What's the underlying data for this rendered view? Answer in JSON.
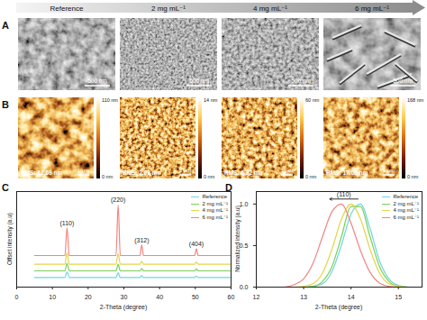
{
  "figure": {
    "A": {
      "panel_label": "A",
      "conditions": [
        "Reference",
        "2 mg mL⁻¹",
        "4 mg mL⁻¹",
        "6 mg mL⁻¹"
      ],
      "images": [
        {
          "scale_bar": "500 nm"
        },
        {
          "scale_bar": "500 nm"
        },
        {
          "scale_bar": "500 nm"
        },
        {
          "scale_bar": "500 nm"
        }
      ]
    },
    "B": {
      "panel_label": "B",
      "images": [
        {
          "rms": "RMS: 12.69 nm",
          "scale_bar": "1 μm",
          "colorbar_max": "110 nm",
          "colorbar_min": "0 nm"
        },
        {
          "rms": "RMS: 2.03 nm",
          "scale_bar": "1 μm",
          "colorbar_max": "14 nm",
          "colorbar_min": "0 nm"
        },
        {
          "rms": "RMS: 6.32 nm",
          "scale_bar": "1 μm",
          "colorbar_max": "60 nm",
          "colorbar_min": "0 nm"
        },
        {
          "rms": "RMS: 17.09 nm",
          "scale_bar": "1 μm",
          "colorbar_max": "168 nm",
          "colorbar_min": "0 nm"
        }
      ]
    }
  },
  "chart_data": [
    {
      "panel_label": "C",
      "type": "line",
      "x_label": "2-Theta (degree)",
      "y_label": "Offset intensity (a.u)",
      "x": [
        5,
        13.5,
        14.1,
        14.7,
        27.8,
        28.4,
        29.0,
        34.5,
        35.0,
        35.5,
        49.8,
        50.3,
        50.8,
        60
      ],
      "series": [
        {
          "name": "Reference",
          "color": "#6fd6df",
          "values": [
            1.0,
            1.0,
            1.6,
            1.0,
            1.0,
            1.5,
            1.0,
            1.0,
            1.2,
            1.0,
            1.0,
            1.15,
            1.0,
            1.0
          ]
        },
        {
          "name": "2 mg mL⁻¹",
          "color": "#7ccf5a",
          "values": [
            1.7,
            1.7,
            2.5,
            1.7,
            1.7,
            2.4,
            1.7,
            1.7,
            1.95,
            1.7,
            1.7,
            1.9,
            1.7,
            1.7
          ]
        },
        {
          "name": "4 mg mL⁻¹",
          "color": "#e3d54a",
          "values": [
            2.4,
            2.4,
            3.6,
            2.4,
            2.4,
            3.5,
            2.4,
            2.4,
            2.7,
            2.4,
            2.4,
            2.6,
            2.4,
            2.4
          ]
        },
        {
          "name": "6 mg mL⁻¹",
          "color": "#f2857f",
          "values": [
            3.3,
            3.3,
            6.2,
            3.3,
            3.3,
            8.6,
            3.3,
            3.3,
            4.4,
            3.3,
            3.3,
            4.0,
            3.3,
            3.3
          ]
        }
      ],
      "xlim": [
        0,
        60
      ],
      "xticks": [
        0,
        10,
        20,
        30,
        40,
        50,
        60
      ],
      "ylim": [
        0,
        10
      ],
      "tick_labels": "x",
      "legend": "top-right",
      "annotations": [
        {
          "text": "(110)",
          "x": 14.1,
          "y": 6.4
        },
        {
          "text": "(220)",
          "x": 28.4,
          "y": 8.8
        },
        {
          "text": "(312)",
          "x": 35.0,
          "y": 4.6
        },
        {
          "text": "(404)",
          "x": 50.3,
          "y": 4.2
        }
      ]
    },
    {
      "panel_label": "D",
      "type": "line",
      "x_label": "2-Theta (degree)",
      "y_label": "Normalized intensity (a.u)",
      "x": [
        12.6,
        12.8,
        13.0,
        13.2,
        13.4,
        13.6,
        13.8,
        14.0,
        14.2,
        14.4,
        14.6,
        14.8,
        15.0,
        15.2
      ],
      "series": [
        {
          "name": "Reference",
          "color": "#6fd6df",
          "values": [
            0,
            0,
            0,
            0.01,
            0.04,
            0.19,
            0.51,
            0.88,
            1.0,
            0.71,
            0.32,
            0.1,
            0.02,
            0
          ]
        },
        {
          "name": "2 mg mL⁻¹",
          "color": "#7ccf5a",
          "values": [
            0,
            0,
            0,
            0.01,
            0.07,
            0.25,
            0.61,
            0.97,
            0.97,
            0.61,
            0.25,
            0.07,
            0.01,
            0
          ]
        },
        {
          "name": "4 mg mL⁻¹",
          "color": "#e3d54a",
          "values": [
            0,
            0,
            0.01,
            0.04,
            0.17,
            0.46,
            0.82,
            1.0,
            0.82,
            0.46,
            0.17,
            0.04,
            0.01,
            0
          ]
        },
        {
          "name": "6 mg mL⁻¹",
          "color": "#f2857f",
          "values": [
            0,
            0.03,
            0.1,
            0.29,
            0.61,
            0.91,
            1.0,
            0.77,
            0.44,
            0.18,
            0.05,
            0.01,
            0,
            0
          ]
        }
      ],
      "xlim": [
        12,
        15.5
      ],
      "xticks": [
        12,
        13,
        14,
        15
      ],
      "ylim": [
        0,
        1.15
      ],
      "yticks": [
        {
          "value": 0,
          "label": "0.0"
        },
        {
          "value": 0.5,
          "label": "0.5"
        },
        {
          "value": 1,
          "label": "1.0"
        }
      ],
      "legend": "top-right",
      "annotations": [
        {
          "text": "(110)",
          "x": 14.15,
          "x2": 13.55,
          "y": 1.06
        }
      ]
    }
  ]
}
